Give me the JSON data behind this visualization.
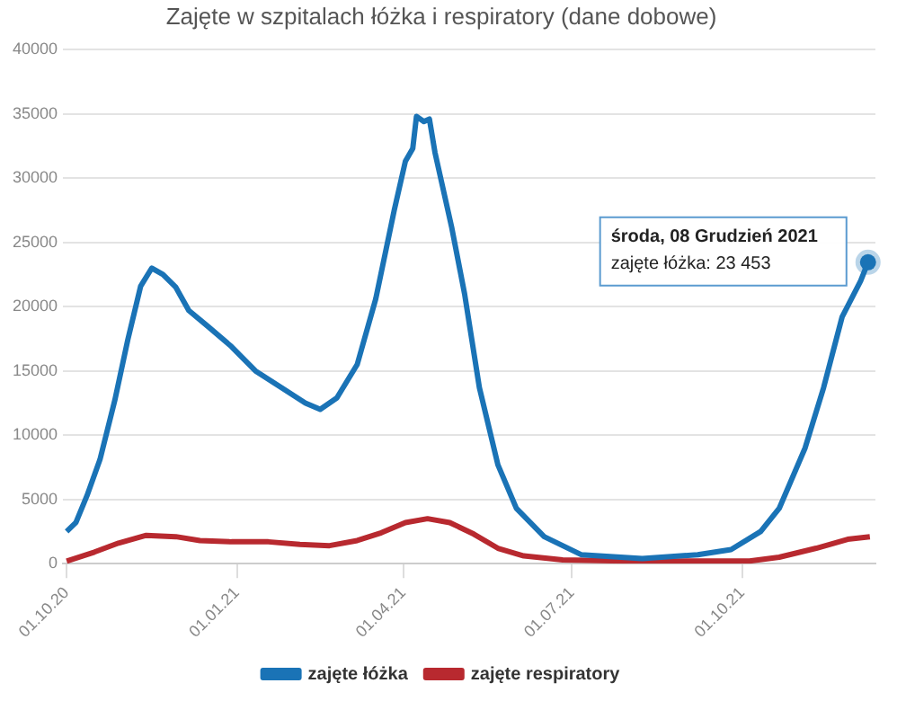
{
  "chart_data": {
    "type": "line",
    "title": "Zajęte w szpitalach łóżka i respiratory (dane dobowe)",
    "xlim": [
      "2020-09-29",
      "2021-12-12"
    ],
    "xticks": [
      {
        "value": "2020-10-01",
        "label": "01.10.20"
      },
      {
        "value": "2021-01-01",
        "label": "01.01.21"
      },
      {
        "value": "2021-04-01",
        "label": "01.04.21"
      },
      {
        "value": "2021-07-01",
        "label": "01.07.21"
      },
      {
        "value": "2021-10-01",
        "label": "01.10.21"
      }
    ],
    "ylim": [
      0,
      40000
    ],
    "yticks": [
      0,
      5000,
      10000,
      15000,
      20000,
      25000,
      30000,
      35000,
      40000
    ],
    "grid": "y",
    "legend": "bottom",
    "marker": "none",
    "line_style": "solid",
    "series": [
      {
        "name": "zajęte łóżka",
        "color": "#1a73b6",
        "x": [
          "2020-10-01",
          "2020-10-06",
          "2020-10-12",
          "2020-10-19",
          "2020-10-27",
          "2020-11-03",
          "2020-11-10",
          "2020-11-16",
          "2020-11-22",
          "2020-11-29",
          "2020-12-06",
          "2020-12-16",
          "2020-12-29",
          "2021-01-11",
          "2021-01-25",
          "2021-02-07",
          "2021-02-15",
          "2021-02-24",
          "2021-03-07",
          "2021-03-17",
          "2021-03-27",
          "2021-04-02",
          "2021-04-06",
          "2021-04-08",
          "2021-04-12",
          "2021-04-15",
          "2021-04-18",
          "2021-04-27",
          "2021-05-04",
          "2021-05-12",
          "2021-05-22",
          "2021-06-01",
          "2021-06-16",
          "2021-07-06",
          "2021-08-08",
          "2021-09-07",
          "2021-09-25",
          "2021-10-11",
          "2021-10-21",
          "2021-11-04",
          "2021-11-14",
          "2021-11-24",
          "2021-12-04",
          "2021-12-08"
        ],
        "values": [
          2500,
          3200,
          5300,
          8100,
          12700,
          17400,
          21600,
          23000,
          22500,
          21500,
          19700,
          18500,
          16900,
          15000,
          13700,
          12500,
          12000,
          12900,
          15500,
          20600,
          27500,
          31300,
          32300,
          34800,
          34400,
          34600,
          32000,
          26200,
          21000,
          13700,
          7700,
          4300,
          2100,
          700,
          400,
          700,
          1100,
          2500,
          4300,
          9000,
          13700,
          19200,
          22000,
          23453
        ]
      },
      {
        "name": "zajęte respiratory",
        "color": "#b8292f",
        "x": [
          "2020-10-01",
          "2020-10-16",
          "2020-10-29",
          "2020-11-13",
          "2020-11-29",
          "2020-12-12",
          "2020-12-29",
          "2021-01-18",
          "2021-02-04",
          "2021-02-20",
          "2021-03-07",
          "2021-03-20",
          "2021-04-02",
          "2021-04-14",
          "2021-04-26",
          "2021-05-09",
          "2021-05-22",
          "2021-06-05",
          "2021-06-26",
          "2021-07-29",
          "2021-10-05",
          "2021-10-21",
          "2021-11-10",
          "2021-11-27",
          "2021-12-09"
        ],
        "values": [
          200,
          900,
          1600,
          2200,
          2100,
          1800,
          1700,
          1700,
          1500,
          1400,
          1800,
          2400,
          3200,
          3500,
          3200,
          2300,
          1200,
          600,
          300,
          200,
          200,
          500,
          1200,
          1900,
          2100
        ]
      }
    ],
    "annotations": [
      {
        "text": "środa, 08 Grudzień 2021\nzajęte łóżka: 23 453",
        "x": "2021-12-08",
        "y": 23453
      }
    ]
  }
}
